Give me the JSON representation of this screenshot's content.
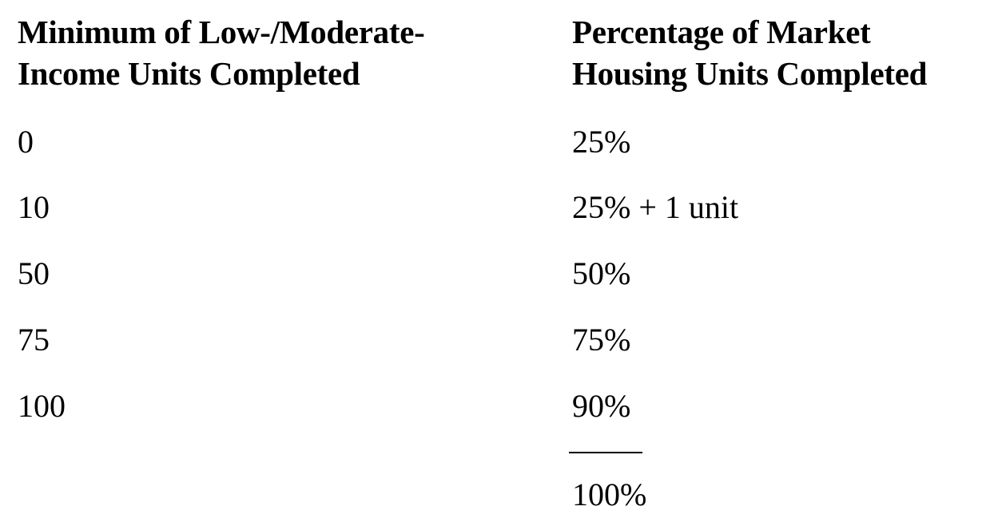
{
  "table": {
    "headers": {
      "left": [
        "Minimum of Low-/Moderate-",
        "Income Units Completed"
      ],
      "right": [
        "Percentage of Market",
        "Housing Units Completed"
      ]
    },
    "rows": [
      {
        "min_units": "0",
        "percentage": "25%"
      },
      {
        "min_units": "10",
        "percentage": "25% + 1 unit"
      },
      {
        "min_units": "50",
        "percentage": "50%"
      },
      {
        "min_units": "75",
        "percentage": "75%"
      },
      {
        "min_units": "100",
        "percentage": "90%"
      }
    ],
    "total": "100%"
  }
}
